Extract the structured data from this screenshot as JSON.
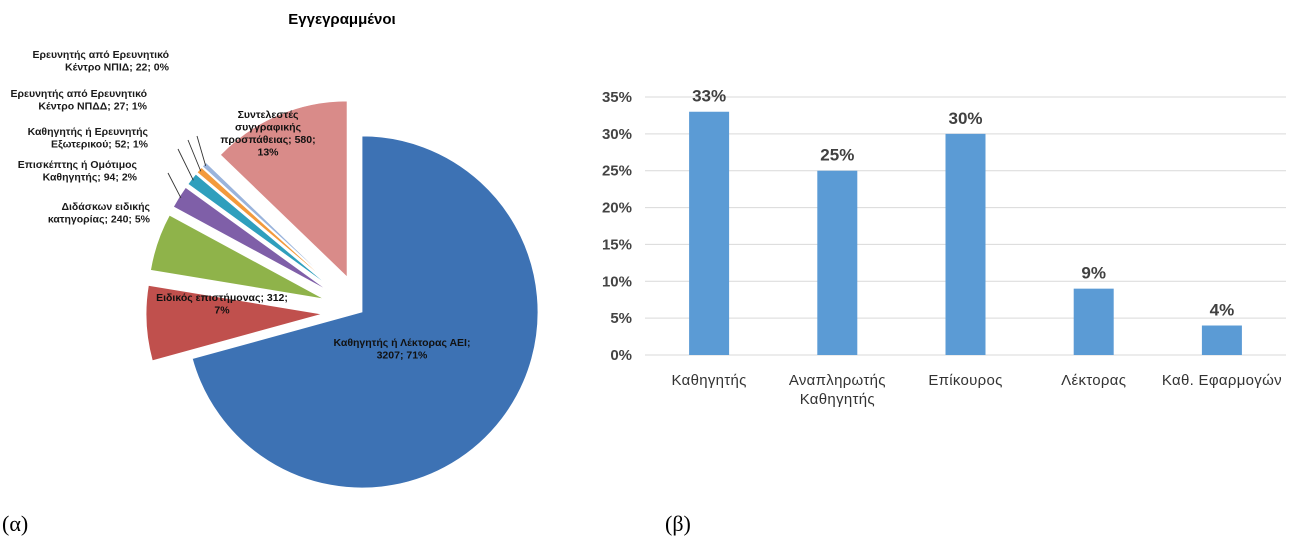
{
  "captions": {
    "a": "(α)",
    "b": "(β)"
  },
  "chart_data": [
    {
      "type": "pie",
      "title": "Εγγεγραμμένοι",
      "slices": [
        {
          "label_lines": [
            "Καθηγητής ή Λέκτορας ΑΕΙ;",
            "3207; 71%"
          ],
          "value": 3207,
          "percent": 71,
          "color": "#3d72b4"
        },
        {
          "label_lines": [
            "Ειδικός επιστήμονας; 312;",
            "7%"
          ],
          "value": 312,
          "percent": 7,
          "color": "#c0504d"
        },
        {
          "label_lines": [
            "Διδάσκων ειδικής",
            "κατηγορίας; 240; 5%"
          ],
          "value": 240,
          "percent": 5,
          "color": "#8fb34a"
        },
        {
          "label_lines": [
            "Επισκέπτης ή Ομότιμος",
            "Καθηγητής; 94; 2%"
          ],
          "value": 94,
          "percent": 2,
          "color": "#7f5fa8"
        },
        {
          "label_lines": [
            "Καθηγητής ή Ερευνητής",
            "Εξωτερικού; 52; 1%"
          ],
          "value": 52,
          "percent": 1,
          "color": "#2f9fbd"
        },
        {
          "label_lines": [
            "Ερευνητής από Ερευνητικό",
            "Κέντρο ΝΠΔΔ; 27; 1%"
          ],
          "value": 27,
          "percent": 1,
          "color": "#f39a3c"
        },
        {
          "label_lines": [
            "Ερευνητής από Ερευνητικό",
            "Κέντρο ΝΠΙΔ; 22; 0%"
          ],
          "value": 22,
          "percent": 0,
          "color": "#9ab4dc"
        },
        {
          "label_lines": [
            "Συντελεστές",
            "συγγραφικής",
            "προσπάθειας; 580;",
            "13%"
          ],
          "value": 580,
          "percent": 13,
          "color": "#d98b89"
        }
      ]
    },
    {
      "type": "bar",
      "categories": [
        [
          "Καθηγητής"
        ],
        [
          "Αναπληρωτής",
          "Καθηγητής"
        ],
        [
          "Επίκουρος"
        ],
        [
          "Λέκτορας"
        ],
        [
          "Καθ. Εφαρμογών"
        ]
      ],
      "values": [
        33,
        25,
        30,
        9,
        4
      ],
      "data_labels": [
        "33%",
        "25%",
        "30%",
        "9%",
        "4%"
      ],
      "ylim": [
        0,
        35
      ],
      "yticks": [
        "0%",
        "5%",
        "10%",
        "15%",
        "20%",
        "25%",
        "30%",
        "35%"
      ],
      "bar_color": "#5b9bd5",
      "grid": true
    }
  ]
}
